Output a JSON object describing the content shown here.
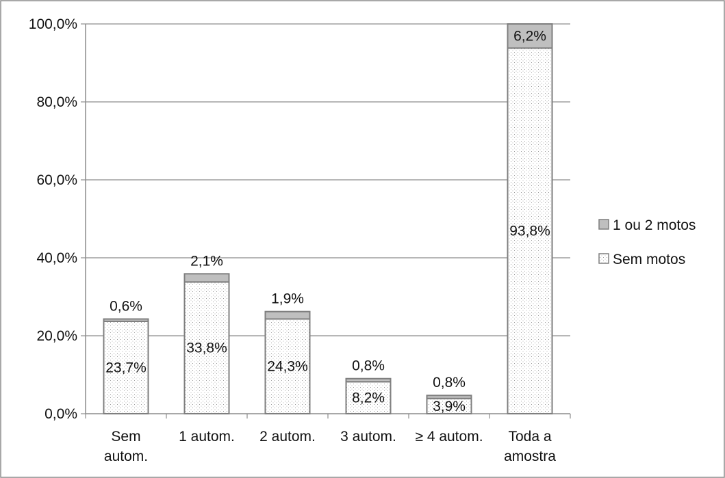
{
  "chart_data": {
    "type": "bar",
    "stacked": true,
    "categories": [
      [
        "Sem",
        "autom."
      ],
      [
        "1 autom."
      ],
      [
        "2 autom."
      ],
      [
        "3 autom."
      ],
      [
        "≥ 4 autom."
      ],
      [
        "Toda a",
        "amostra"
      ]
    ],
    "series": [
      {
        "name": "Sem motos",
        "values": [
          23.7,
          33.8,
          24.3,
          8.2,
          3.9,
          93.8
        ],
        "labels": [
          "23,7%",
          "33,8%",
          "24,3%",
          "8,2%",
          "3,9%",
          "93,8%"
        ],
        "color": "#ffffff",
        "pattern": "dotted"
      },
      {
        "name": "1 ou 2 motos",
        "values": [
          0.6,
          2.1,
          1.9,
          0.8,
          0.8,
          6.2
        ],
        "labels": [
          "0,6%",
          "2,1%",
          "1,9%",
          "0,8%",
          "0,8%",
          "6,2%"
        ],
        "color": "#bfbfbf"
      }
    ],
    "ylim": [
      0,
      100
    ],
    "yticks": [
      0,
      20,
      40,
      60,
      80,
      100
    ],
    "ytick_labels": [
      "0,0%",
      "20,0%",
      "40,0%",
      "60,0%",
      "80,0%",
      "100,0%"
    ],
    "grid": true,
    "legend_position": "right",
    "legend_order": [
      "1 ou 2 motos",
      "Sem motos"
    ],
    "title": "",
    "xlabel": "",
    "ylabel": ""
  }
}
